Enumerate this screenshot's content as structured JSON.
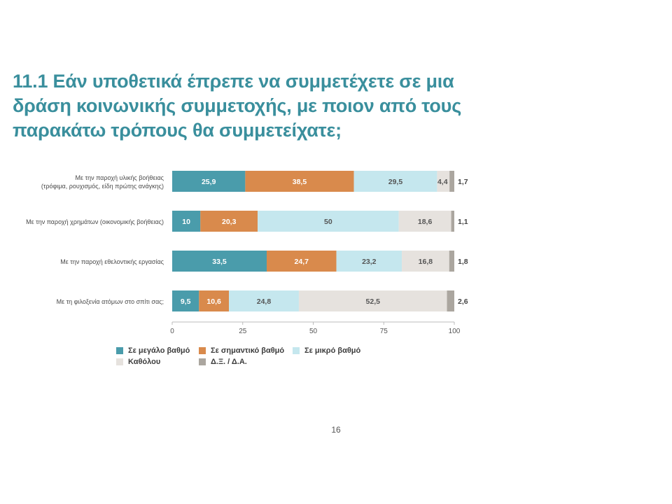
{
  "title": "11.1 Εάν υποθετικά έπρεπε να συμμετέχετε σε μια δράση κοινωνικής συμμετοχής, με ποιον από τους παρακάτω τρόπους θα συμμετείχατε;",
  "page_number": "16",
  "colors": {
    "title": "#3a8f9d",
    "series": [
      "#4a9cab",
      "#d98a4c",
      "#c5e7ee",
      "#e6e2de",
      "#aba69f"
    ]
  },
  "chart_data": {
    "type": "bar",
    "orientation": "horizontal",
    "stacked": true,
    "categories": [
      [
        "Με την παροχή υλικής βοήθειας",
        "(τρόφιμα, ρουχισμός, είδη πρώτης ανάγκης)"
      ],
      [
        "Με την παροχή χρημάτων (οικονομικής βοήθειας)"
      ],
      [
        "Με την παροχή  εθελοντικής εργασίας"
      ],
      [
        "Με τη φιλοξενία ατόμων στο σπίτι σας;"
      ]
    ],
    "series": [
      {
        "name": "Σε μεγάλο βαθμό",
        "values": [
          25.9,
          10,
          33.5,
          9.5
        ],
        "labels": [
          "25,9",
          "10",
          "33,5",
          "9,5"
        ]
      },
      {
        "name": "Σε σημαντικό βαθμό",
        "values": [
          38.5,
          20.3,
          24.7,
          10.6
        ],
        "labels": [
          "38,5",
          "20,3",
          "24,7",
          "10,6"
        ]
      },
      {
        "name": "Σε μικρό βαθμό",
        "values": [
          29.5,
          50,
          23.2,
          24.8
        ],
        "labels": [
          "29,5",
          "50",
          "23,2",
          "24,8"
        ]
      },
      {
        "name": "Καθόλου",
        "values": [
          4.4,
          18.6,
          16.8,
          52.5
        ],
        "labels": [
          "4,4",
          "18,6",
          "16,8",
          "52,5"
        ]
      },
      {
        "name": "Δ.Ξ. / Δ.Α.",
        "values": [
          1.7,
          1.1,
          1.8,
          2.6
        ],
        "labels": [
          "1,7",
          "1,1",
          "1,8",
          "2,6"
        ]
      }
    ],
    "xlim": [
      0,
      100
    ],
    "xticks": [
      0,
      25,
      50,
      75,
      100
    ],
    "grid": false,
    "legend_position": "bottom"
  }
}
